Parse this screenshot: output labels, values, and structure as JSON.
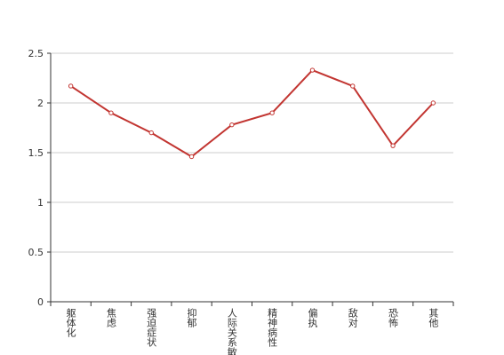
{
  "chart_data": {
    "type": "line",
    "categories": [
      "躯体化",
      "焦虑",
      "强迫症状",
      "抑郁",
      "人际关系敏感",
      "精神病性",
      "偏执",
      "敌对",
      "恐怖",
      "其他"
    ],
    "series": [
      {
        "color": "#c23531",
        "values": [
          2.17,
          1.9,
          1.7,
          1.46,
          1.78,
          1.9,
          2.33,
          2.17,
          1.57,
          2.0
        ]
      }
    ],
    "ylim": [
      0,
      2.5
    ],
    "yticks": [
      0,
      0.5,
      1,
      1.5,
      2,
      2.5
    ],
    "grid": true
  }
}
